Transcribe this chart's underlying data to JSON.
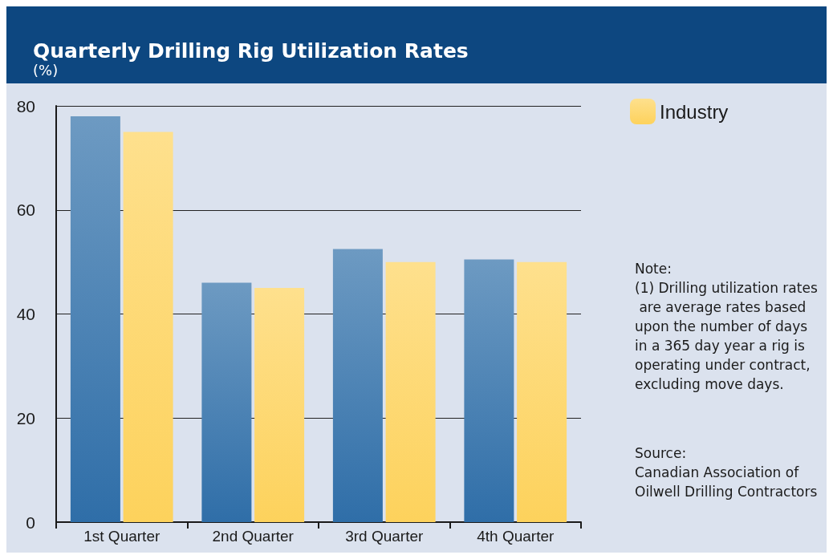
{
  "chart_data": {
    "type": "bar",
    "title": "Quarterly Drilling Rig Utilization Rates",
    "subtitle": "(%)",
    "categories": [
      "1st Quarter",
      "2nd Quarter",
      "3rd Quarter",
      "4th Quarter"
    ],
    "series": [
      {
        "color": "#2f6ea8",
        "values": [
          78,
          46,
          52.5,
          50.5
        ]
      },
      {
        "name": "Industry",
        "color": "#fdd25c",
        "values": [
          75,
          45,
          50,
          50
        ]
      }
    ],
    "ylim": [
      0,
      80
    ],
    "yticks": [
      0,
      20,
      40,
      60,
      80
    ],
    "grid": "y",
    "legend": "top right",
    "annotations": [
      "Note:\n(1) Drilling utilization rates are average rates based upon the number of days in a 365 day year a rig is operating under contract, excluding move days.",
      "Source:\nCanadian Association of Oilwell Drilling Contractors"
    ]
  }
}
